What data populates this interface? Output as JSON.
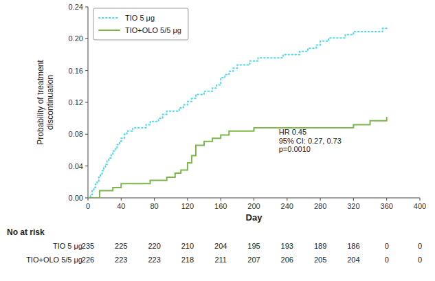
{
  "chart_data": {
    "type": "step",
    "xlabel": "Day",
    "ylabel": "Probability of treatment\ndiscontinuation",
    "xlim": [
      0,
      400
    ],
    "ylim": [
      0,
      0.24
    ],
    "xticks": [
      0,
      40,
      80,
      120,
      160,
      200,
      240,
      280,
      320,
      360,
      400
    ],
    "yticks": [
      {
        "value": 0.0,
        "label": "0.00"
      },
      {
        "value": 0.04,
        "label": "0.04"
      },
      {
        "value": 0.08,
        "label": "0.08"
      },
      {
        "value": 0.12,
        "label": "0.12"
      },
      {
        "value": 0.16,
        "label": "0.16"
      },
      {
        "value": 0.2,
        "label": "0.20"
      },
      {
        "value": 0.24,
        "label": "0.24"
      }
    ],
    "grid": false,
    "legend": "upper left",
    "series": [
      {
        "name": "TIO 5 μg",
        "color": "#4DD9EC",
        "line_style": "dotted",
        "x": [
          0,
          3,
          5,
          7,
          9,
          11,
          13,
          15,
          17,
          19,
          21,
          23,
          25,
          28,
          30,
          33,
          35,
          38,
          40,
          44,
          47,
          50,
          54,
          57,
          60,
          65,
          70,
          75,
          80,
          85,
          90,
          95,
          100,
          105,
          110,
          115,
          120,
          125,
          128,
          130,
          135,
          140,
          145,
          150,
          155,
          160,
          165,
          170,
          175,
          180,
          185,
          190,
          195,
          200,
          205,
          210,
          215,
          220,
          225,
          230,
          235,
          240,
          245,
          250,
          255,
          260,
          265,
          270,
          275,
          280,
          285,
          290,
          295,
          300,
          305,
          310,
          315,
          320,
          325,
          330,
          335,
          340,
          345,
          350,
          355,
          360
        ],
        "values": [
          0.0,
          0.004,
          0.009,
          0.013,
          0.017,
          0.021,
          0.026,
          0.03,
          0.034,
          0.038,
          0.042,
          0.047,
          0.05,
          0.055,
          0.059,
          0.063,
          0.067,
          0.071,
          0.075,
          0.08,
          0.084,
          0.084,
          0.088,
          0.088,
          0.088,
          0.088,
          0.092,
          0.096,
          0.096,
          0.1,
          0.105,
          0.109,
          0.109,
          0.109,
          0.113,
          0.117,
          0.121,
          0.125,
          0.125,
          0.13,
          0.13,
          0.134,
          0.134,
          0.138,
          0.142,
          0.151,
          0.155,
          0.159,
          0.163,
          0.167,
          0.167,
          0.167,
          0.172,
          0.172,
          0.176,
          0.176,
          0.176,
          0.176,
          0.176,
          0.176,
          0.18,
          0.18,
          0.18,
          0.18,
          0.184,
          0.184,
          0.188,
          0.188,
          0.192,
          0.197,
          0.197,
          0.201,
          0.201,
          0.201,
          0.201,
          0.205,
          0.205,
          0.209,
          0.209,
          0.209,
          0.209,
          0.209,
          0.209,
          0.209,
          0.213,
          0.213
        ]
      },
      {
        "name": "TIO+OLO 5/5 μg",
        "color": "#7AB648",
        "line_style": "solid",
        "x": [
          0,
          10,
          14,
          18,
          22,
          26,
          30,
          35,
          40,
          47,
          55,
          65,
          75,
          85,
          95,
          105,
          112,
          120,
          125,
          130,
          135,
          140,
          150,
          155,
          160,
          165,
          170,
          180,
          190,
          200,
          210,
          220,
          230,
          240,
          250,
          260,
          270,
          280,
          290,
          300,
          310,
          320,
          330,
          340,
          350,
          360
        ],
        "values": [
          0.0,
          0.0,
          0.009,
          0.009,
          0.009,
          0.009,
          0.013,
          0.013,
          0.018,
          0.018,
          0.018,
          0.018,
          0.022,
          0.022,
          0.026,
          0.031,
          0.035,
          0.044,
          0.053,
          0.066,
          0.066,
          0.071,
          0.075,
          0.075,
          0.079,
          0.079,
          0.084,
          0.084,
          0.084,
          0.088,
          0.088,
          0.088,
          0.088,
          0.088,
          0.088,
          0.088,
          0.088,
          0.088,
          0.088,
          0.088,
          0.088,
          0.092,
          0.092,
          0.097,
          0.097,
          0.101
        ]
      }
    ],
    "annotations": [
      {
        "text": "HR 0.45\n95% CI: 0.27, 0.73\np=0.0010",
        "x": 230,
        "y": 0.055
      }
    ],
    "risk_table": {
      "header": "No at risk",
      "x": [
        0,
        40,
        80,
        120,
        160,
        200,
        240,
        280,
        320,
        360,
        400
      ],
      "rows": [
        {
          "name": "TIO 5 μg",
          "values": [
            235,
            225,
            220,
            210,
            204,
            195,
            193,
            189,
            186,
            0,
            0
          ]
        },
        {
          "name": "TIO+OLO 5/5 μg",
          "values": [
            226,
            223,
            223,
            218,
            211,
            207,
            206,
            205,
            204,
            0,
            0
          ]
        }
      ]
    }
  }
}
